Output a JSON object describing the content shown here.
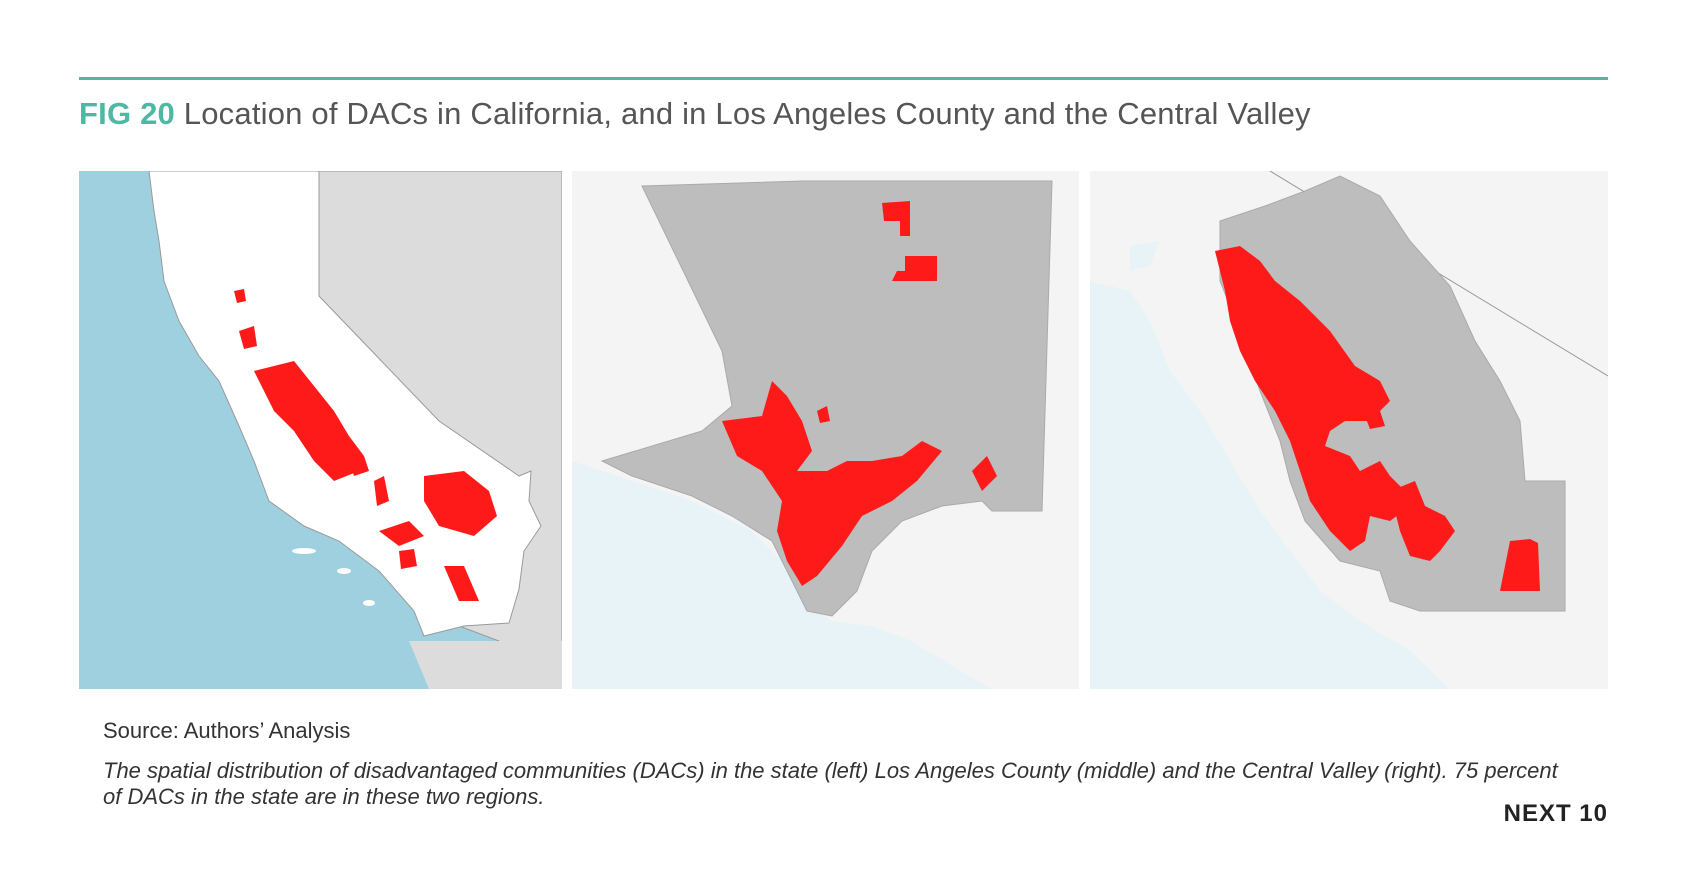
{
  "figure": {
    "label": "FIG 20",
    "title": "Location of DACs in California, and in Los Angeles County and the Central Valley"
  },
  "colors": {
    "accent": "#4db8a4",
    "dac_red": "#ff1a1a",
    "ocean": "#9fd0e0",
    "light_ocean": "#e8f3f8",
    "region_gray": "#bdbdbd",
    "neighbor_gray": "#dcdcdc"
  },
  "maps": [
    {
      "id": "california",
      "position_word": "left"
    },
    {
      "id": "los-angeles-county",
      "position_word": "middle"
    },
    {
      "id": "central-valley",
      "position_word": "right"
    }
  ],
  "source": "Source: Authors’ Analysis",
  "caption": "The spatial distribution of disadvantaged communities (DACs) in the state (left) Los Angeles County (middle) and the Central Valley (right). 75 percent of DACs in the state are in these two regions.",
  "brand": "NEXT 10"
}
